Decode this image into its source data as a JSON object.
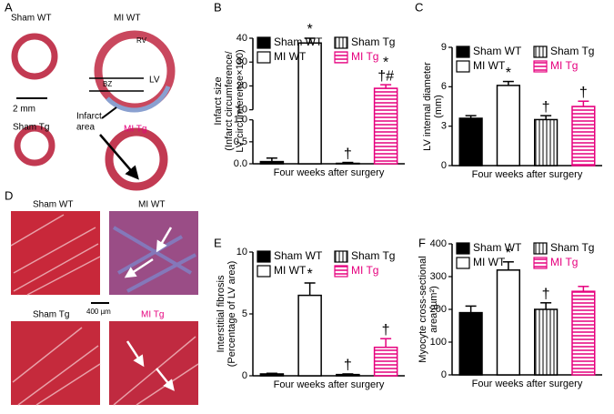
{
  "panel_letters": [
    "A",
    "B",
    "C",
    "D",
    "E",
    "F"
  ],
  "panel_a": {
    "sham_wt": "Sham WT",
    "mi_wt": "MI WT",
    "sham_tg": "Sham Tg",
    "mi_tg": "MI Tg",
    "rv": "RV",
    "rz": "RZ",
    "bz": "BZ",
    "lv": "LV",
    "scale": "2 mm",
    "infarct": [
      "Infarct",
      "area"
    ]
  },
  "panel_d": {
    "images": [
      "Sham WT",
      "MI WT",
      "Sham Tg",
      "MI Tg"
    ],
    "scale": "400 µm"
  },
  "chart_data": [
    {
      "type": "bar",
      "ylabel": [
        "Infarct size",
        "(Infarct circumference/",
        "LV circumference×100)"
      ],
      "xlabel": "Four weeks after surgery",
      "categories": [
        "Sham WT",
        "MI WT",
        "Sham Tg",
        "MI Tg"
      ],
      "values": [
        0.05,
        38,
        0.01,
        19
      ],
      "errors": [
        0.08,
        2,
        0.02,
        1.5
      ],
      "annotations": [
        null,
        "*",
        "†",
        [
          "*",
          "†#"
        ]
      ],
      "patterns": [
        "solid",
        "solid",
        "vertical-stripes",
        "horizontal-stripes"
      ],
      "colors": [
        "#000000",
        "#ffffff",
        "#555555",
        "#e6007e"
      ],
      "label_colors": [
        "#000000",
        "#000000",
        "#000000",
        "#e6007e"
      ],
      "ylim": [
        0,
        40
      ],
      "ybreak": [
        1,
        10
      ],
      "yticks": [
        {
          "value": 0,
          "label": "0.0"
        },
        0.5,
        {
          "value": 1,
          "label": "1.0"
        },
        10,
        20,
        30,
        40
      ]
    },
    {
      "type": "bar",
      "ylabel": [
        "LV internal diameter",
        "(mm)"
      ],
      "xlabel": "Four weeks after surgery",
      "categories": [
        "Sham WT",
        "MI WT",
        "Sham Tg",
        "MI Tg"
      ],
      "values": [
        3.6,
        6.1,
        3.5,
        4.5
      ],
      "errors": [
        0.2,
        0.3,
        0.3,
        0.4
      ],
      "annotations": [
        null,
        "*",
        "†",
        "†"
      ],
      "patterns": [
        "solid",
        "solid",
        "vertical-stripes",
        "horizontal-stripes"
      ],
      "colors": [
        "#000000",
        "#ffffff",
        "#555555",
        "#e6007e"
      ],
      "label_colors": [
        "#000000",
        "#000000",
        "#000000",
        "#e6007e"
      ],
      "ylim": [
        0,
        9
      ],
      "yticks": [
        0,
        3,
        6,
        9
      ]
    },
    {
      "type": "bar",
      "ylabel": [
        "Interstitial fibrosis",
        "(Percentage of LV area)"
      ],
      "xlabel": "Four weeks after surgery",
      "categories": [
        "Sham WT",
        "MI WT",
        "Sham Tg",
        "MI Tg"
      ],
      "values": [
        0.15,
        6.5,
        0.1,
        2.3
      ],
      "errors": [
        0.05,
        1.0,
        0.05,
        0.7
      ],
      "annotations": [
        null,
        "*",
        "†",
        "†"
      ],
      "patterns": [
        "solid",
        "solid",
        "vertical-stripes",
        "horizontal-stripes"
      ],
      "colors": [
        "#000000",
        "#ffffff",
        "#555555",
        "#e6007e"
      ],
      "label_colors": [
        "#000000",
        "#000000",
        "#000000",
        "#e6007e"
      ],
      "ylim": [
        0,
        10
      ],
      "yticks": [
        0,
        5,
        10
      ]
    },
    {
      "type": "bar",
      "ylabel": [
        "Myocyte cross-sectional",
        "area (µm²)"
      ],
      "xlabel": "Four weeks after surgery",
      "categories": [
        "Sham WT",
        "MI WT",
        "Sham Tg",
        "MI Tg"
      ],
      "values": [
        190,
        320,
        200,
        255
      ],
      "errors": [
        20,
        25,
        20,
        15
      ],
      "annotations": [
        null,
        "*",
        "†",
        null
      ],
      "patterns": [
        "solid",
        "solid",
        "vertical-stripes",
        "horizontal-stripes"
      ],
      "colors": [
        "#000000",
        "#ffffff",
        "#555555",
        "#e6007e"
      ],
      "label_colors": [
        "#000000",
        "#000000",
        "#000000",
        "#e6007e"
      ],
      "ylim": [
        0,
        400
      ],
      "yticks": [
        0,
        100,
        200,
        300,
        400
      ]
    }
  ]
}
